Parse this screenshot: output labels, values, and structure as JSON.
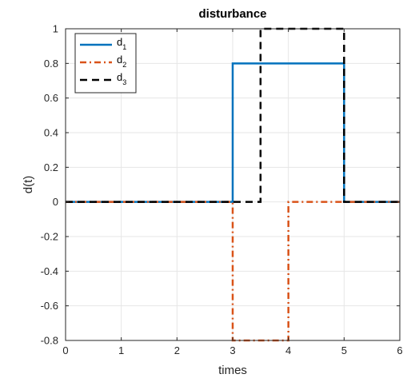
{
  "chart_data": {
    "type": "line",
    "title": "disturbance",
    "xlabel": "times",
    "ylabel": "d(t)",
    "xlim": [
      0,
      6
    ],
    "ylim": [
      -0.8,
      1
    ],
    "xticks": [
      0,
      1,
      2,
      3,
      4,
      5,
      6
    ],
    "yticks": [
      -0.8,
      -0.6,
      -0.4,
      -0.2,
      0,
      0.2,
      0.4,
      0.6,
      0.8,
      1
    ],
    "grid": true,
    "legend_position": "top-left",
    "series": [
      {
        "name": "d",
        "subscript": "1",
        "color": "#0072BD",
        "dash": "solid",
        "x": [
          0,
          3,
          3,
          5,
          5,
          6
        ],
        "y": [
          0,
          0,
          0.8,
          0.8,
          0,
          0
        ]
      },
      {
        "name": "d",
        "subscript": "2",
        "color": "#D95319",
        "dash": "dashdot",
        "x": [
          0,
          3,
          3,
          4,
          4,
          6
        ],
        "y": [
          0,
          0,
          -0.8,
          -0.8,
          0,
          0
        ]
      },
      {
        "name": "d",
        "subscript": "3",
        "color": "#000000",
        "dash": "dashed",
        "x": [
          0,
          3.5,
          3.5,
          5,
          5,
          6
        ],
        "y": [
          0,
          0,
          1,
          1,
          0,
          0
        ]
      }
    ]
  }
}
